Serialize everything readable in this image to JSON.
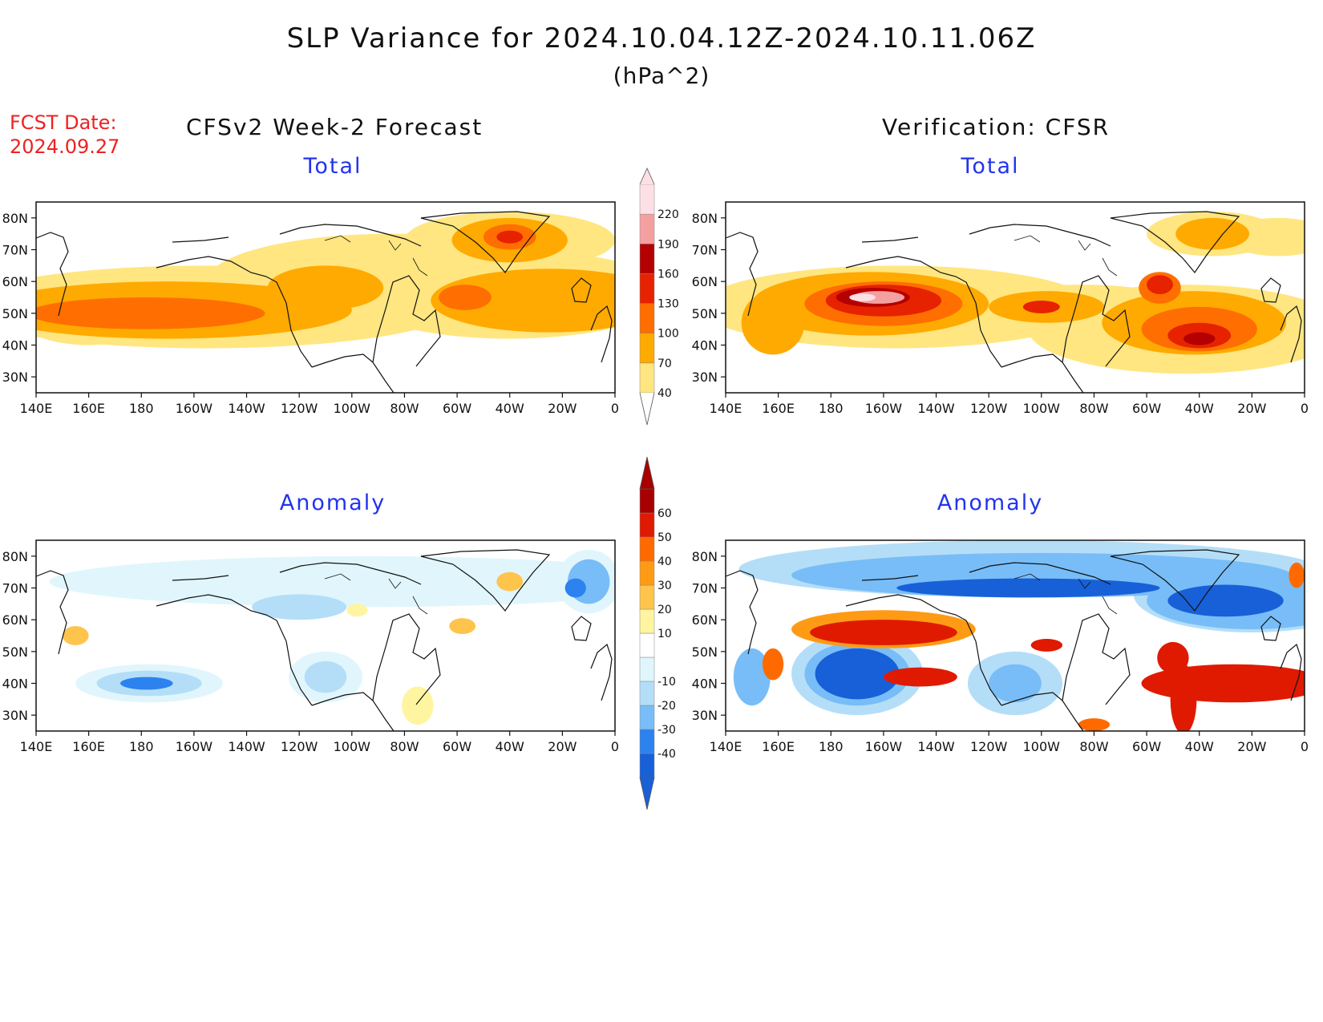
{
  "figure": {
    "title": "SLP Variance for 2024.10.04.12Z-2024.10.11.06Z",
    "units": "(hPa^2)",
    "fcst_date_label": "FCST Date:",
    "fcst_date_value": "2024.09.27",
    "left_header": "CFSv2 Week-2 Forecast",
    "right_header": "Verification: CFSR"
  },
  "panels": [
    {
      "id": "forecast-total",
      "label": "Total"
    },
    {
      "id": "verification-total",
      "label": "Total"
    },
    {
      "id": "forecast-anomaly",
      "label": "Anomaly"
    },
    {
      "id": "verification-anomaly",
      "label": "Anomaly"
    }
  ],
  "axes": {
    "lon_ticks": [
      "140E",
      "160E",
      "180",
      "160W",
      "140W",
      "120W",
      "100W",
      "80W",
      "60W",
      "40W",
      "20W",
      "0"
    ],
    "lat_ticks": [
      "80N",
      "70N",
      "60N",
      "50N",
      "40N",
      "30N"
    ],
    "lon_range": [
      140,
      360
    ],
    "lat_range": [
      25,
      85
    ]
  },
  "colorbars": {
    "total": {
      "levels": [
        "40",
        "70",
        "100",
        "130",
        "160",
        "190",
        "220"
      ],
      "colors": [
        "#ffe680",
        "#ffaa00",
        "#ff6e00",
        "#e62200",
        "#b40000",
        "#f5a0a0",
        "#fde0e6"
      ]
    },
    "anomaly": {
      "levels": [
        "-40",
        "-30",
        "-20",
        "-10",
        "10",
        "20",
        "30",
        "40",
        "50",
        "60"
      ],
      "colors": [
        "#1860d8",
        "#2c82ee",
        "#78bdf7",
        "#b4def8",
        "#e0f6fc",
        "#ffffff",
        "#fff4a0",
        "#ffc44c",
        "#ff9a14",
        "#ff6a00",
        "#e01a00",
        "#a80000"
      ]
    }
  }
}
